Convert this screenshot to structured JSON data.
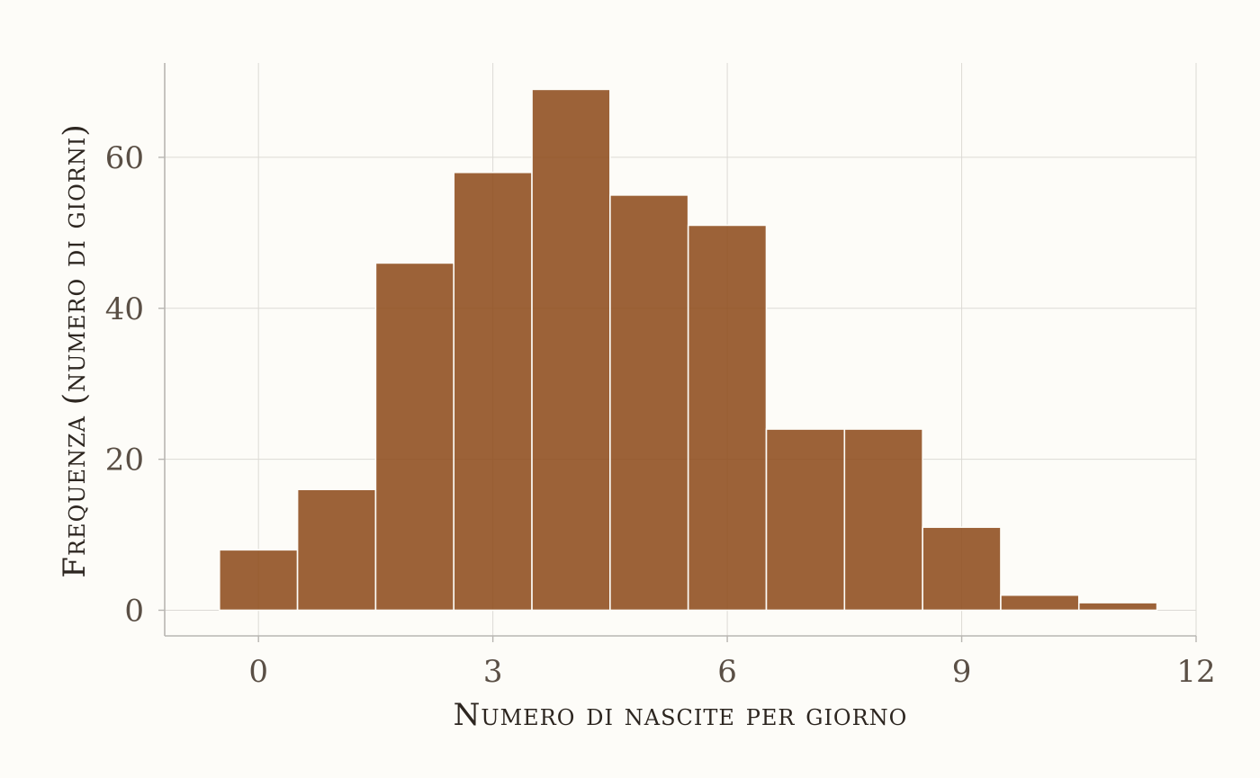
{
  "chart_data": {
    "type": "bar",
    "title": "",
    "xlabel": "Numero di nascite per giorno",
    "ylabel": "Frequenza (numero di giorni)",
    "x": [
      0,
      1,
      2,
      3,
      4,
      5,
      6,
      7,
      8,
      9,
      10,
      11
    ],
    "values": [
      8,
      16,
      46,
      58,
      69,
      55,
      51,
      24,
      24,
      11,
      2,
      1
    ],
    "bin_width": 1,
    "xlim": [
      -1.2,
      12.0
    ],
    "ylim": [
      -3.4,
      72.5
    ],
    "x_ticks": [
      0,
      3,
      6,
      9,
      12
    ],
    "x_tick_labels": [
      "0",
      "3",
      "6",
      "9",
      "12"
    ],
    "y_ticks": [
      0,
      20,
      40,
      60
    ],
    "y_tick_labels": [
      "0",
      "20",
      "40",
      "60"
    ],
    "grid": true,
    "legend": "none",
    "colors": {
      "bar_fill": "#8e4c1c",
      "bar_stroke": "#fdfcf8",
      "grid": "#dcdad5",
      "axis": "#b8b6b2",
      "background": "#fdfcf8",
      "tick_text": "#5a4f45",
      "title_text": "#2d2620"
    }
  }
}
